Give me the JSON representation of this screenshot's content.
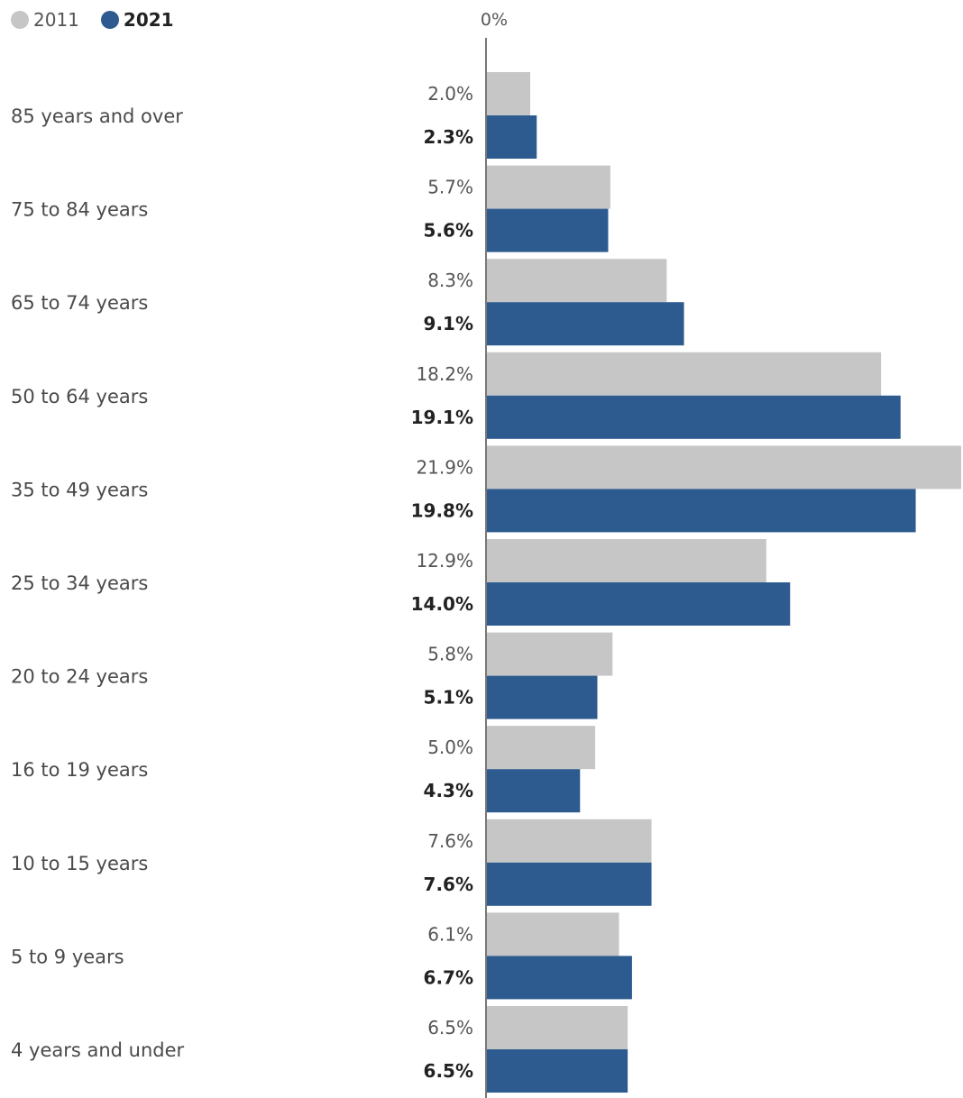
{
  "legend": {
    "items": [
      {
        "label": "2011",
        "color": "#c6c6c6",
        "bold": false
      },
      {
        "label": "2021",
        "color": "#2d5b8f",
        "bold": true
      }
    ]
  },
  "chart_data": {
    "type": "bar",
    "orientation": "horizontal",
    "categories": [
      "85 years and over",
      "75 to 84 years",
      "65 to 74 years",
      "50 to 64 years",
      "35 to 49 years",
      "25 to 34 years",
      "20 to 24 years",
      "16 to 19 years",
      "10 to 15 years",
      "5 to 9 years",
      "4 years and under"
    ],
    "series": [
      {
        "name": "2011",
        "color": "#c6c6c6",
        "values": [
          2.0,
          5.7,
          8.3,
          18.2,
          21.9,
          12.9,
          5.8,
          5.0,
          7.6,
          6.1,
          6.5
        ],
        "labels": [
          "2.0%",
          "5.7%",
          "8.3%",
          "18.2%",
          "21.9%",
          "12.9%",
          "5.8%",
          "5.0%",
          "7.6%",
          "6.1%",
          "6.5%"
        ]
      },
      {
        "name": "2021",
        "color": "#2d5b8f",
        "values": [
          2.3,
          5.6,
          9.1,
          19.1,
          19.8,
          14.0,
          5.1,
          4.3,
          7.6,
          6.7,
          6.5
        ],
        "labels": [
          "2.3%",
          "5.6%",
          "9.1%",
          "19.1%",
          "19.8%",
          "14.0%",
          "5.1%",
          "4.3%",
          "7.6%",
          "6.7%",
          "6.5%"
        ]
      }
    ],
    "xtick": "0%",
    "xlim": [
      0,
      21.9
    ],
    "grid": false,
    "legend_position": "top-left"
  }
}
